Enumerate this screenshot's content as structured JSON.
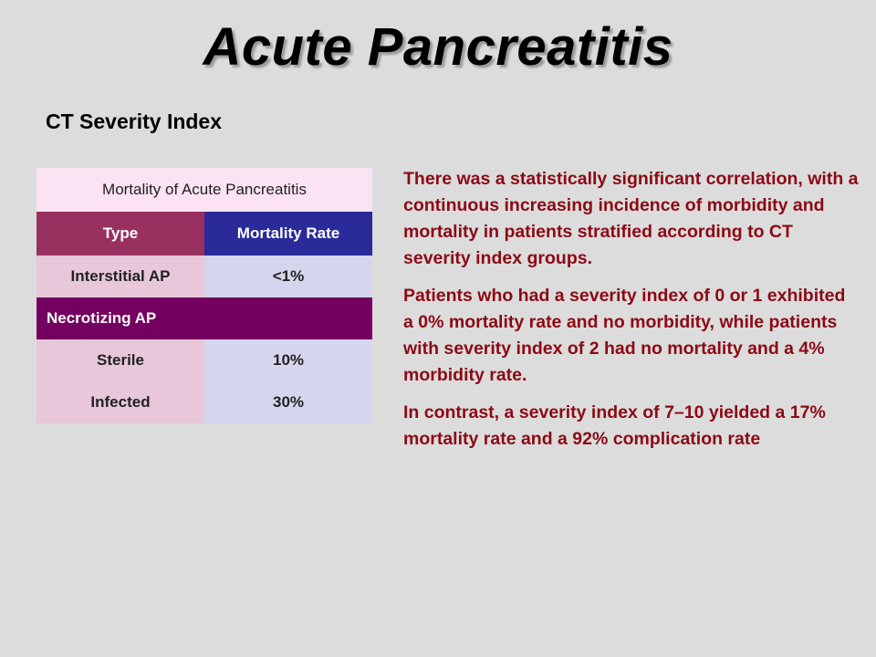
{
  "slide": {
    "title": "Acute Pancreatitis",
    "subtitle": "CT Severity Index"
  },
  "table": {
    "caption": "Mortality of Acute Pancreatitis",
    "headers": [
      "Type",
      "Mortality Rate"
    ],
    "rows": [
      {
        "type": "Interstitial AP",
        "rate": "<1%"
      },
      {
        "group": "Necrotizing AP"
      },
      {
        "type": "Sterile",
        "rate": "10%"
      },
      {
        "type": "Infected",
        "rate": "30%"
      }
    ]
  },
  "colors": {
    "background": "#dcdcdc",
    "body_text": "#8b0a14",
    "header_type": "#983060",
    "header_rate": "#2a2a9a",
    "group_row": "#740060"
  },
  "paragraphs": [
    "There was a statistically significant correlation, with a continuous increasing incidence of morbidity and mortality in patients stratified according to CT severity index groups.",
    "Patients who had a severity index of 0 or 1 exhibited a 0% mortality rate and no morbidity, while patients with severity index of 2 had no mortality and a 4% morbidity rate.",
    "In contrast, a severity index of 7–10 yielded a 17% mortality rate and a 92% complication rate"
  ]
}
